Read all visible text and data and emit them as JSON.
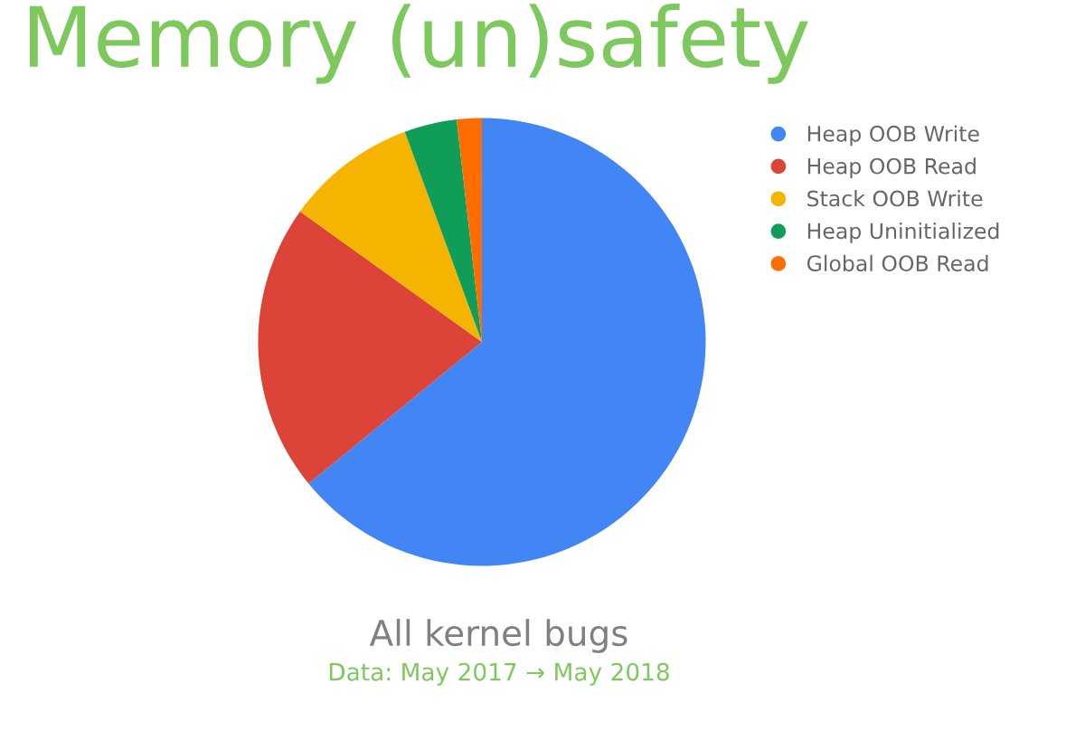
{
  "chart_data": {
    "type": "pie",
    "title": "Memory (un)safety",
    "subtitle": "All kernel bugs",
    "annotations": [
      "Data: May 2017 → May 2018"
    ],
    "categories": [
      "Heap OOB Write",
      "Heap OOB Read",
      "Stack OOB Write",
      "Heap Uninitialized",
      "Global OOB Read"
    ],
    "values": [
      64.1,
      20.8,
      9.5,
      3.8,
      1.8
    ],
    "colors": [
      "#4285f4",
      "#db4437",
      "#f4b400",
      "#0f9d58",
      "#ff6d00"
    ],
    "legend": "top right"
  }
}
